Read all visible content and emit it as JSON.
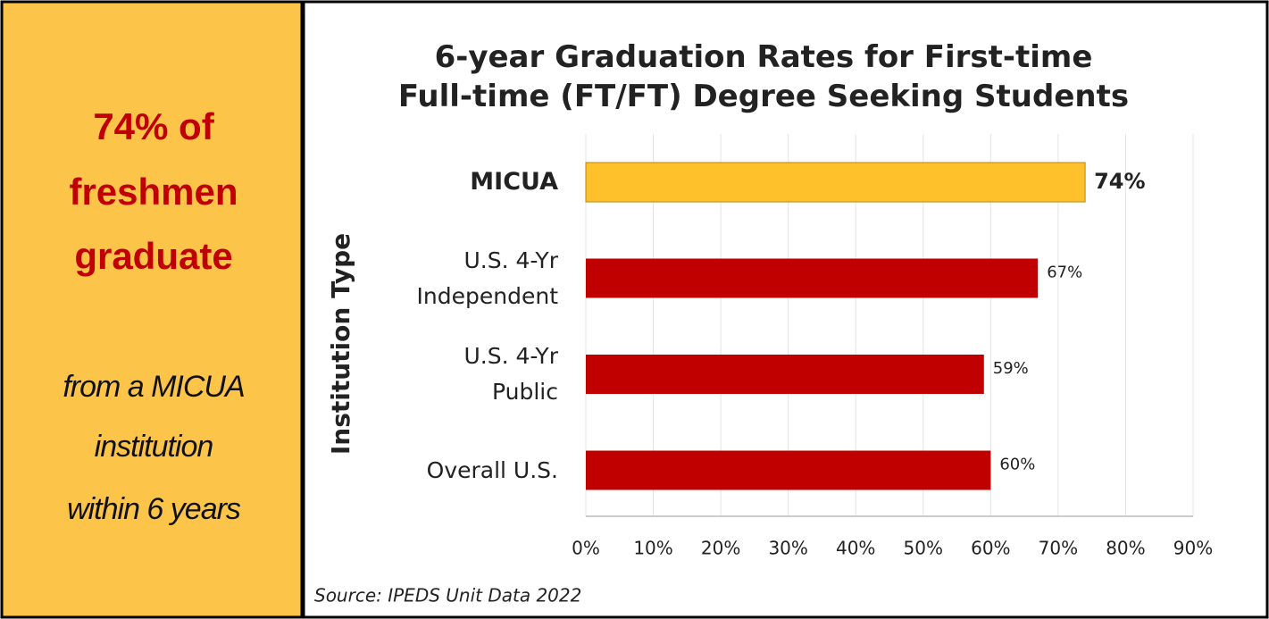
{
  "panel": {
    "headline": [
      "74% of",
      "freshmen",
      "graduate"
    ],
    "subline": [
      "from a MICUA",
      "institution",
      "within 6 years"
    ]
  },
  "chart_data": {
    "type": "hbar",
    "title": "6-year Graduation Rates for First-time Full-time (FT/FT) Degree Seeking Students",
    "y_label": "Institution Type",
    "categories": [
      "MICUA",
      "U.S. 4-Yr Independent",
      "U.S. 4-Yr Public",
      "Overall U.S."
    ],
    "values": [
      74,
      67,
      59,
      60
    ],
    "value_labels": [
      "74%",
      "67%",
      "59%",
      "60%"
    ],
    "colors": [
      "#ffc12b",
      "#c00000",
      "#c00000",
      "#c00000"
    ],
    "xlim": [
      0,
      90
    ],
    "xticks": [
      {
        "value": 0,
        "label": "0%"
      },
      {
        "value": 10,
        "label": "10%"
      },
      {
        "value": 20,
        "label": "20%"
      },
      {
        "value": 30,
        "label": "30%"
      },
      {
        "value": 40,
        "label": "40%"
      },
      {
        "value": 50,
        "label": "50%"
      },
      {
        "value": 60,
        "label": "60%"
      },
      {
        "value": 70,
        "label": "70%"
      },
      {
        "value": 80,
        "label": "80%"
      },
      {
        "value": 90,
        "label": "90%"
      }
    ],
    "grid": true,
    "source": "Source: IPEDS Unit Data 2022"
  }
}
